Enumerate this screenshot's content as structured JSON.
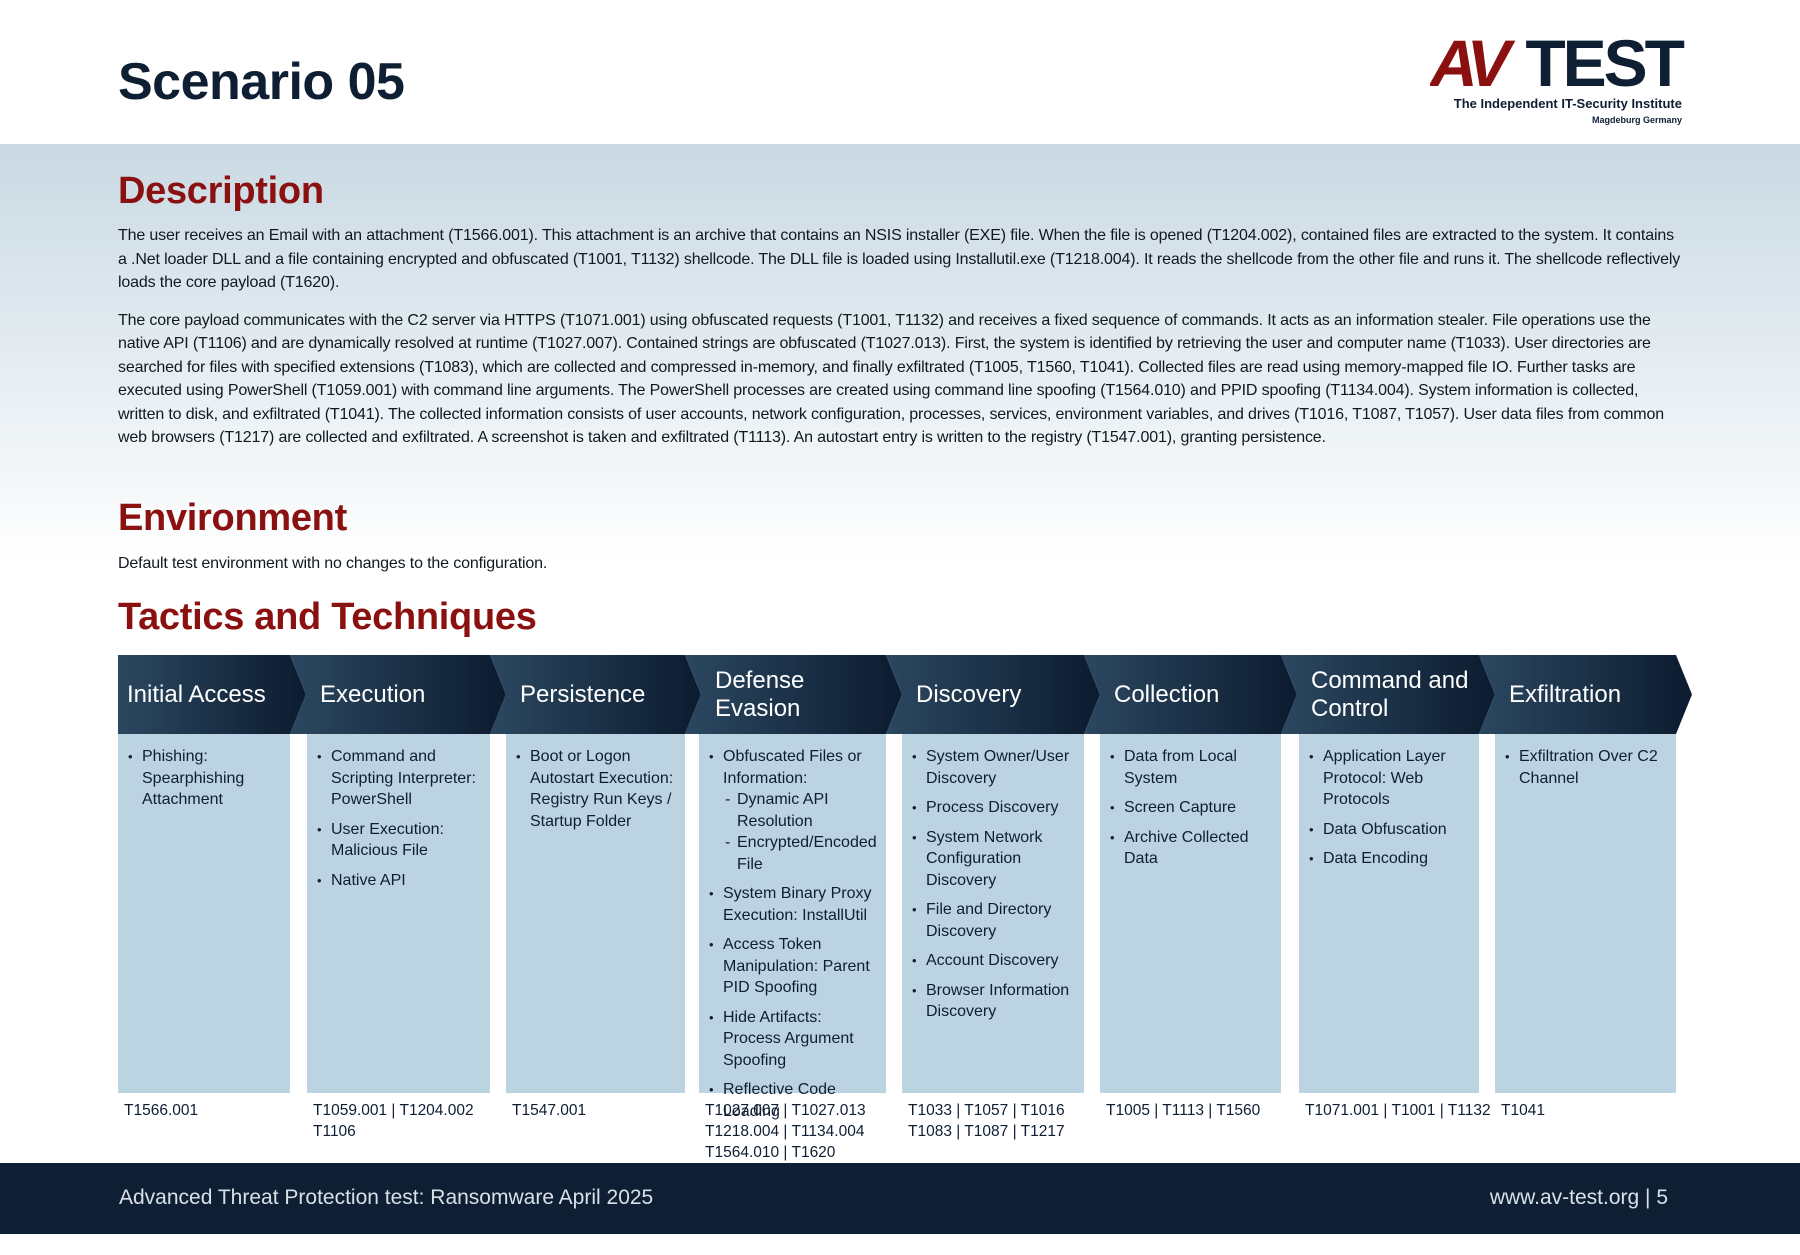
{
  "header": {
    "title": "Scenario 05",
    "logo": {
      "mark": "AV",
      "word": "TEST",
      "tagline": "The Independent IT-Security Institute",
      "location": "Magdeburg Germany"
    }
  },
  "description": {
    "heading": "Description",
    "paragraphs": [
      "The user receives an Email with an attachment (T1566.001). This attachment is an archive that contains an NSIS installer (EXE) file. When the file is opened (T1204.002), contained files are extracted to the system. It contains a .Net loader DLL and a file containing encrypted and obfuscated (T1001, T1132) shellcode. The DLL file is loaded using Installutil.exe (T1218.004). It reads the shellcode from the other file and runs it. The shellcode reflectively loads the core payload (T1620).",
      "The core payload communicates with the C2 server via HTTPS (T1071.001) using obfuscated requests (T1001, T1132) and receives a fixed sequence of commands. It acts as an information stealer. File operations use the native API (T1106) and are dynamically resolved at runtime (T1027.007). Contained strings are obfuscated (T1027.013). First, the system is identified by retrieving the user and computer name (T1033). User directories are searched for files with specified extensions (T1083), which are collected and compressed in-memory, and finally exfiltrated (T1005, T1560, T1041). Collected files are read using memory-mapped file IO. Further tasks are executed using PowerShell (T1059.001) with command line arguments. The PowerShell processes are created using command line spoofing (T1564.010) and PPID spoofing (T1134.004). System information is collected, written to disk, and exfiltrated (T1041). The collected information consists of user accounts, network configuration, processes, services, environment variables, and drives (T1016, T1087, T1057). User data files from common web browsers (T1217) are collected and exfiltrated. A screenshot is taken and exfiltrated (T1113). An autostart entry is written to the registry (T1547.001), granting persistence."
    ]
  },
  "environment": {
    "heading": "Environment",
    "text": "Default test environment with no changes to the configuration."
  },
  "tactics": {
    "heading": "Tactics and Techniques",
    "columns": [
      {
        "name": "Initial Access",
        "items": [
          {
            "text": "Phishing: Spearphishing Attachment"
          }
        ],
        "techniques": [
          "T1566.001"
        ]
      },
      {
        "name": "Execution",
        "items": [
          {
            "text": "Command and Scripting Interpreter: PowerShell"
          },
          {
            "text": "User Execution: Malicious File"
          },
          {
            "text": "Native API"
          }
        ],
        "techniques": [
          "T1059.001 | T1204.002",
          "T1106"
        ]
      },
      {
        "name": "Persistence",
        "items": [
          {
            "text": "Boot or Logon Autostart Execution: Registry Run Keys / Startup Folder"
          }
        ],
        "techniques": [
          "T1547.001"
        ]
      },
      {
        "name": "Defense Evasion",
        "items": [
          {
            "text": "Obfuscated Files or Information:",
            "subitems": [
              "Dynamic API Resolution",
              "Encrypted/Encoded File"
            ]
          },
          {
            "text": "System Binary Proxy Execution: InstallUtil"
          },
          {
            "text": "Access Token Manipulation: Parent PID Spoofing"
          },
          {
            "text": "Hide Artifacts: Process Argument Spoofing"
          },
          {
            "text": "Reflective Code Loading"
          }
        ],
        "techniques": [
          "T1027.007 | T1027.013",
          "T1218.004 | T1134.004",
          "T1564.010 | T1620"
        ]
      },
      {
        "name": "Discovery",
        "items": [
          {
            "text": "System Owner/User Discovery"
          },
          {
            "text": "Process Discovery"
          },
          {
            "text": "System Network Configuration Discovery"
          },
          {
            "text": "File and Directory Discovery"
          },
          {
            "text": "Account Discovery"
          },
          {
            "text": "Browser Information Discovery"
          }
        ],
        "techniques": [
          "T1033 | T1057 | T1016",
          "T1083 | T1087 | T1217"
        ]
      },
      {
        "name": "Collection",
        "items": [
          {
            "text": "Data from Local System"
          },
          {
            "text": "Screen Capture"
          },
          {
            "text": "Archive Collected Data"
          }
        ],
        "techniques": [
          "T1005 | T1113 | T1560"
        ]
      },
      {
        "name": "Command and Control",
        "items": [
          {
            "text": "Application Layer Protocol: Web Protocols"
          },
          {
            "text": "Data Obfuscation"
          },
          {
            "text": "Data Encoding"
          }
        ],
        "techniques": [
          "T1071.001 | T1001 | T1132"
        ]
      },
      {
        "name": "Exfiltration",
        "items": [
          {
            "text": "Exfiltration Over C2 Channel"
          }
        ],
        "techniques": [
          "T1041"
        ]
      }
    ]
  },
  "footer": {
    "left": "Advanced Threat Protection test: Ransomware April 2025",
    "right": "www.av-test.org | 5"
  }
}
